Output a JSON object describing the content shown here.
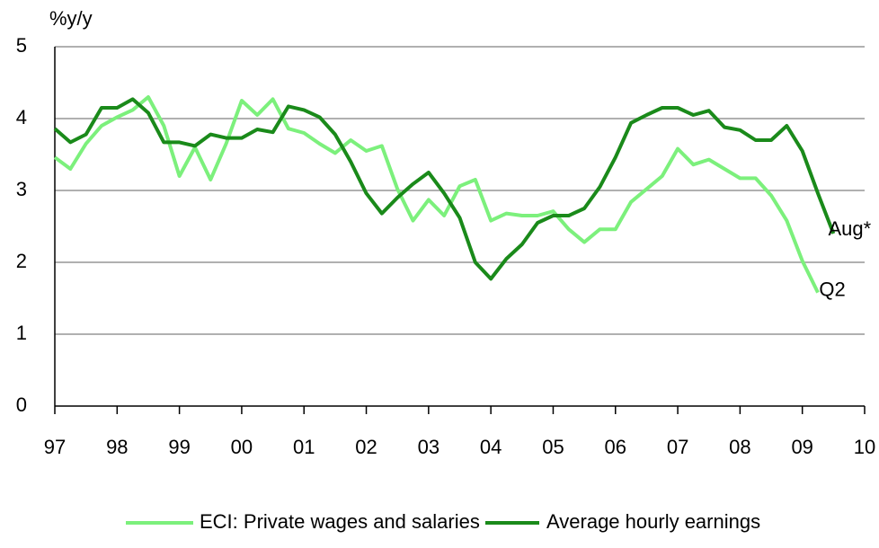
{
  "chart_data": {
    "type": "line",
    "y_label": "%y/y",
    "xlim": [
      1997,
      2010
    ],
    "xticks": [
      {
        "value": 1997,
        "label": "97"
      },
      {
        "value": 1998,
        "label": "98"
      },
      {
        "value": 1999,
        "label": "99"
      },
      {
        "value": 2000,
        "label": "00"
      },
      {
        "value": 2001,
        "label": "01"
      },
      {
        "value": 2002,
        "label": "02"
      },
      {
        "value": 2003,
        "label": "03"
      },
      {
        "value": 2004,
        "label": "04"
      },
      {
        "value": 2005,
        "label": "05"
      },
      {
        "value": 2006,
        "label": "06"
      },
      {
        "value": 2007,
        "label": "07"
      },
      {
        "value": 2008,
        "label": "08"
      },
      {
        "value": 2009,
        "label": "09"
      },
      {
        "value": 2010,
        "label": "10"
      }
    ],
    "ylim": [
      0,
      5
    ],
    "yticks": [
      0,
      1,
      2,
      3,
      4,
      5
    ],
    "grid": true,
    "series": [
      {
        "name": "ECI: Private wages and salaries",
        "color": "#7cf07c",
        "end_label": "Q2",
        "x": [
          1997,
          1997.25,
          1997.5,
          1997.75,
          1998,
          1998.25,
          1998.5,
          1998.75,
          1999,
          1999.25,
          1999.5,
          1999.75,
          2000,
          2000.25,
          2000.5,
          2000.75,
          2001,
          2001.25,
          2001.5,
          2001.75,
          2002,
          2002.25,
          2002.5,
          2002.75,
          2003,
          2003.25,
          2003.5,
          2003.75,
          2004,
          2004.25,
          2004.5,
          2004.75,
          2005,
          2005.25,
          2005.5,
          2005.75,
          2006,
          2006.25,
          2006.5,
          2006.75,
          2007,
          2007.25,
          2007.5,
          2007.75,
          2008,
          2008.25,
          2008.5,
          2008.75,
          2009,
          2009.25
        ],
        "values": [
          3.46,
          3.3,
          3.65,
          3.9,
          4.02,
          4.12,
          4.3,
          3.9,
          3.2,
          3.6,
          3.15,
          3.65,
          4.25,
          4.05,
          4.27,
          3.86,
          3.8,
          3.65,
          3.52,
          3.7,
          3.55,
          3.62,
          3.02,
          2.58,
          2.87,
          2.65,
          3.06,
          3.15,
          2.58,
          2.68,
          2.65,
          2.65,
          2.71,
          2.46,
          2.28,
          2.46,
          2.46,
          2.84,
          3.02,
          3.2,
          3.58,
          3.36,
          3.43,
          3.3,
          3.17,
          3.17,
          2.93,
          2.58,
          2.02,
          1.58
        ]
      },
      {
        "name": "Average hourly earnings",
        "color": "#1a8a1a",
        "end_label": "Aug*",
        "x": [
          1997,
          1997.25,
          1997.5,
          1997.75,
          1998,
          1998.25,
          1998.5,
          1998.75,
          1999,
          1999.25,
          1999.5,
          1999.75,
          2000,
          2000.25,
          2000.5,
          2000.75,
          2001,
          2001.25,
          2001.5,
          2001.75,
          2002,
          2002.25,
          2002.5,
          2002.75,
          2003,
          2003.25,
          2003.5,
          2003.75,
          2004,
          2004.25,
          2004.5,
          2004.75,
          2005,
          2005.25,
          2005.5,
          2005.75,
          2006,
          2006.25,
          2006.5,
          2006.75,
          2007,
          2007.25,
          2007.5,
          2007.75,
          2008,
          2008.25,
          2008.5,
          2008.75,
          2009,
          2009.25,
          2009.5
        ],
        "values": [
          3.86,
          3.67,
          3.78,
          4.15,
          4.15,
          4.27,
          4.08,
          3.67,
          3.67,
          3.62,
          3.78,
          3.73,
          3.73,
          3.85,
          3.81,
          4.17,
          4.12,
          4.02,
          3.78,
          3.4,
          2.96,
          2.68,
          2.9,
          3.09,
          3.25,
          2.96,
          2.62,
          2.0,
          1.77,
          2.05,
          2.25,
          2.55,
          2.65,
          2.65,
          2.75,
          3.05,
          3.46,
          3.94,
          4.05,
          4.15,
          4.15,
          4.05,
          4.11,
          3.88,
          3.84,
          3.7,
          3.7,
          3.9,
          3.55,
          2.96,
          2.4
        ]
      }
    ]
  }
}
